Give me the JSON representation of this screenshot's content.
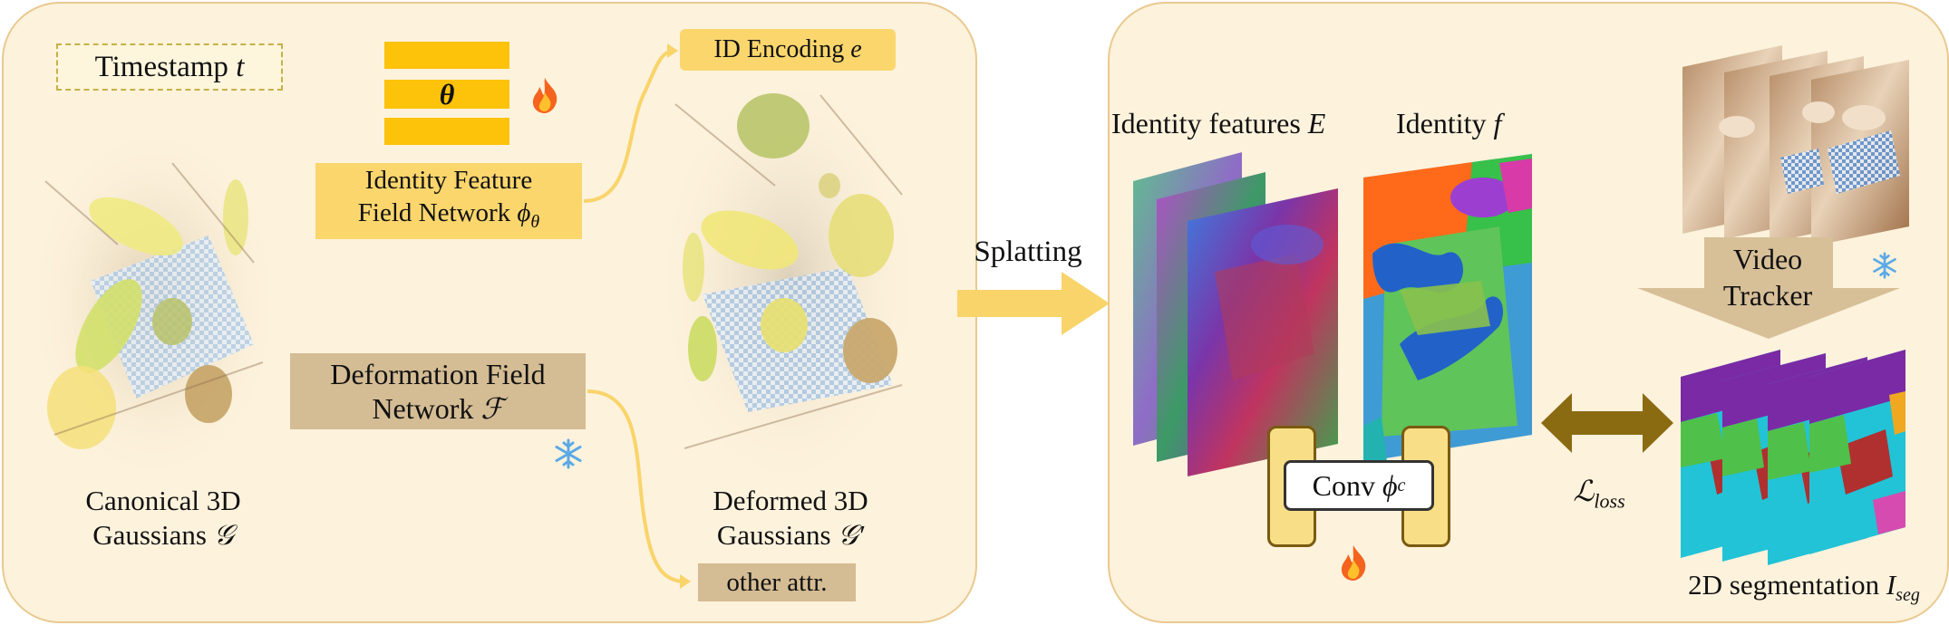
{
  "left_panel": {
    "timestamp_label": "Timestamp",
    "timestamp_symbol": "t",
    "theta_symbol": "θ",
    "identity_network_line1": "Identity Feature",
    "identity_network_line2": "Field Network",
    "identity_network_symbol": "ϕ",
    "identity_network_subscript": "θ",
    "id_encoding_label": "ID Encoding",
    "id_encoding_symbol": "e",
    "deformation_line1": "Deformation Field",
    "deformation_line2": "Network",
    "deformation_symbol": "ℱ",
    "canonical_line1": "Canonical 3D",
    "canonical_line2": "Gaussians",
    "canonical_symbol": "𝒢",
    "deformed_line1": "Deformed 3D",
    "deformed_line2": "Gaussians",
    "deformed_symbol": "𝒢′",
    "other_attr_label": "other attr."
  },
  "middle": {
    "splatting_label": "Splatting"
  },
  "right_panel": {
    "identity_features_label": "Identity features",
    "identity_features_symbol": "E",
    "identity_label": "Identity",
    "identity_symbol": "f",
    "conv_label": "Conv",
    "conv_symbol": "ϕ",
    "conv_subscript": "c",
    "video_tracker_line1": "Video",
    "video_tracker_line2": "Tracker",
    "loss_symbol": "ℒ",
    "loss_subscript": "loss",
    "segmentation_label": "2D segmentation",
    "segmentation_symbol": "I",
    "segmentation_subscript": "seg"
  },
  "colors": {
    "panel_fill": "#fdf2dc",
    "panel_border": "#e9c98f",
    "identity_network_fill": "#fbd66d",
    "theta_bar_fill": "#fdc20a",
    "deformation_fill": "#d4bc94",
    "arrow_yellow": "#f9d46a",
    "loss_arrow": "#8b6b12",
    "tracker_arrow": "#d7bf98",
    "conv_fill": "#f8de86"
  },
  "icons": [
    "fire-icon",
    "snowflake-icon"
  ]
}
